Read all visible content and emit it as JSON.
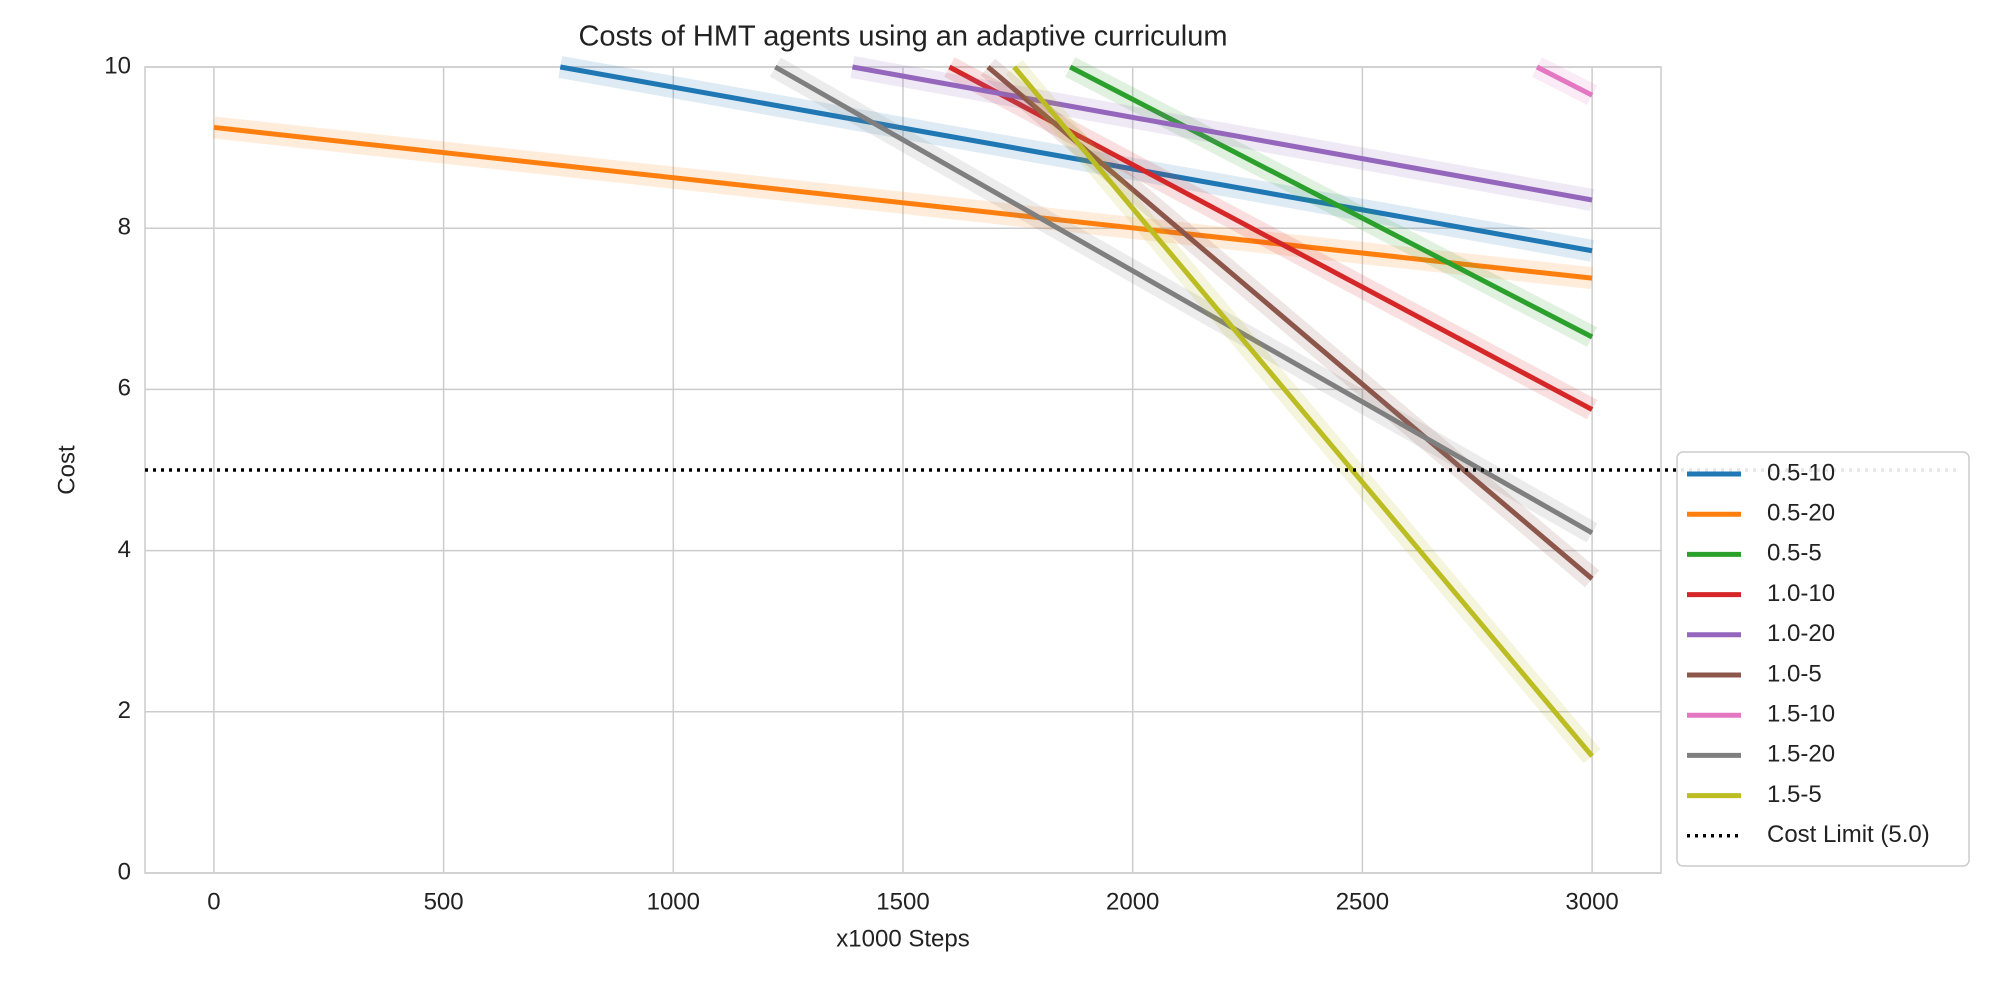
{
  "chart_data": {
    "type": "line",
    "title": "Costs of HMT agents using an adaptive curriculum",
    "x_label": "x1000 Steps",
    "y_label": "Cost",
    "xlim": [
      -150,
      3150
    ],
    "xticks": [
      0,
      500,
      1000,
      1500,
      2000,
      2500,
      3000
    ],
    "ylim": [
      0,
      10
    ],
    "yticks": [
      0,
      2,
      4,
      6,
      8,
      10
    ],
    "grid": true,
    "legend": "outside-lower-right",
    "series": [
      {
        "name": "0.5-10",
        "color": "#1f77b4",
        "x": [
          754,
          3000
        ],
        "values": [
          10,
          7.72
        ]
      },
      {
        "name": "0.5-20",
        "color": "#ff7f0e",
        "x": [
          0,
          3000
        ],
        "values": [
          9.25,
          7.38
        ]
      },
      {
        "name": "0.5-5",
        "color": "#2ca02c",
        "x": [
          1864,
          3000
        ],
        "values": [
          10,
          6.65
        ]
      },
      {
        "name": "1.0-10",
        "color": "#d62728",
        "x": [
          1601,
          3000
        ],
        "values": [
          10,
          5.75
        ]
      },
      {
        "name": "1.0-20",
        "color": "#9467bd",
        "x": [
          1390,
          3000
        ],
        "values": [
          10,
          8.35
        ]
      },
      {
        "name": "1.0-5",
        "color": "#8c564b",
        "x": [
          1685,
          3000
        ],
        "values": [
          10,
          3.65
        ]
      },
      {
        "name": "1.5-10",
        "color": "#e377c2",
        "x": [
          2880,
          3000
        ],
        "values": [
          10,
          9.65
        ]
      },
      {
        "name": "1.5-20",
        "color": "#7f7f7f",
        "x": [
          1222,
          3000
        ],
        "values": [
          10,
          4.22
        ]
      },
      {
        "name": "1.5-5",
        "color": "#bcbd22",
        "x": [
          1742,
          3000
        ],
        "values": [
          10,
          1.45
        ]
      }
    ],
    "hline": {
      "value": 5,
      "label": "Cost Limit (5.0)",
      "color": "#000000"
    }
  }
}
